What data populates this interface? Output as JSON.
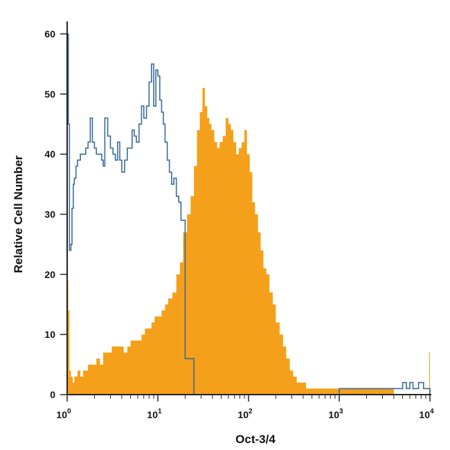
{
  "chart_data": {
    "type": "area",
    "xlabel": "Oct-3/4",
    "ylabel": "Relative Cell Number",
    "x_scale": "log",
    "xlim": [
      1,
      10000
    ],
    "ylim": [
      0,
      60
    ],
    "x_ticks": [
      {
        "value": 1,
        "base": "10",
        "exp": "0"
      },
      {
        "value": 10,
        "base": "10",
        "exp": "1"
      },
      {
        "value": 100,
        "base": "10",
        "exp": "2"
      },
      {
        "value": 1000,
        "base": "10",
        "exp": "3"
      },
      {
        "value": 10000,
        "base": "10",
        "exp": "4"
      }
    ],
    "y_ticks": [
      0,
      10,
      20,
      30,
      40,
      50,
      60
    ],
    "grid": false,
    "legend": "none",
    "colors": {
      "isotype": "#3a6a9a",
      "stained": "#f5a01a",
      "axis": "#222222"
    },
    "series": [
      {
        "role": "isotype-outline",
        "style": "step-outline",
        "x": [
          1.0,
          1.03,
          1.06,
          1.1,
          1.13,
          1.17,
          1.2,
          1.25,
          1.3,
          1.4,
          1.5,
          1.6,
          1.7,
          1.8,
          1.9,
          2.0,
          2.1,
          2.2,
          2.3,
          2.4,
          2.5,
          2.6,
          2.8,
          3.0,
          3.2,
          3.4,
          3.6,
          3.8,
          4.0,
          4.3,
          4.6,
          4.9,
          5.2,
          5.5,
          5.8,
          6.2,
          6.6,
          7.0,
          7.5,
          8.0,
          8.5,
          9.0,
          9.5,
          10.0,
          10.5,
          11.0,
          11.5,
          12.0,
          12.7,
          13.4,
          14.2,
          15.0,
          16.0,
          17.0,
          18.0,
          20.0,
          25.0,
          40.0,
          60.0,
          100.0,
          200.0,
          400.0,
          700.0,
          1000.0,
          1500.0,
          2500.0,
          3500.0,
          5000.0,
          5500.0,
          6000.0,
          6500.0,
          7000.0,
          7500.0,
          8000.0,
          8500.0,
          9000.0,
          9500.0,
          10000.0
        ],
        "values": [
          60,
          45,
          24,
          25,
          31,
          35,
          36,
          38,
          39,
          40,
          40,
          41,
          42,
          46,
          42,
          41,
          40,
          40,
          40,
          39,
          38,
          46,
          43,
          41,
          40,
          39,
          42,
          39,
          37,
          39,
          41,
          41,
          44,
          43,
          42,
          45,
          48,
          46,
          48,
          52,
          55,
          48,
          54,
          53,
          49,
          47,
          45,
          42,
          39,
          37,
          35,
          36,
          33,
          32,
          29,
          6,
          0,
          0,
          0,
          0,
          0,
          0,
          0,
          1,
          1,
          1,
          1,
          2,
          1,
          2,
          1,
          1,
          2,
          2,
          1,
          1,
          1,
          0
        ]
      },
      {
        "role": "stained-filled",
        "style": "step-filled",
        "x": [
          1.0,
          1.03,
          1.06,
          1.1,
          1.15,
          1.2,
          1.3,
          1.4,
          1.5,
          1.7,
          1.9,
          2.1,
          2.3,
          2.5,
          2.8,
          3.1,
          3.4,
          3.8,
          4.2,
          4.6,
          5.0,
          5.5,
          6.0,
          6.6,
          7.2,
          7.8,
          8.5,
          9.2,
          10.0,
          11.0,
          12.0,
          13.0,
          14.5,
          16.0,
          17.5,
          19.0,
          21.0,
          23.0,
          25.0,
          27.0,
          29.0,
          31.0,
          33.0,
          35.0,
          37.0,
          39.0,
          42.0,
          45.0,
          48.0,
          52.0,
          56.0,
          60.0,
          64.0,
          68.0,
          73.0,
          78.0,
          84.0,
          90.0,
          96.0,
          103.0,
          110.0,
          118.0,
          127.0,
          136.0,
          146.0,
          157.0,
          170.0,
          185.0,
          200.0,
          220.0,
          240.0,
          260.0,
          285.0,
          310.0,
          340.0,
          380.0,
          430.0,
          500.0,
          600.0,
          700.0,
          800.0,
          900.0,
          1000.0,
          1200.0,
          1500.0,
          2000.0,
          2500.0,
          3000.0,
          3500.0,
          4000.0,
          5000.0,
          6000.0,
          7000.0,
          8000.0,
          9000.0,
          9800.0,
          10000.0
        ],
        "values": [
          19,
          14,
          4,
          3,
          2,
          3,
          4,
          3,
          4,
          5,
          5,
          6,
          5,
          7,
          7,
          8,
          8,
          8,
          7,
          8,
          9,
          9,
          9,
          10,
          11,
          11,
          12,
          13,
          13,
          14,
          15,
          16,
          17,
          20,
          22,
          27,
          30,
          33,
          38,
          44,
          47,
          51,
          48,
          46,
          45,
          44,
          42,
          41,
          42,
          43,
          46,
          45,
          44,
          42,
          40,
          41,
          42,
          44,
          40,
          37,
          32,
          30,
          27,
          24,
          21,
          20,
          17,
          15,
          12,
          10,
          8,
          6,
          4,
          3,
          2,
          2,
          1,
          1,
          1,
          1,
          1,
          1,
          1,
          1,
          1,
          1,
          1,
          1,
          1,
          0,
          0,
          0,
          0,
          0,
          0,
          7,
          0
        ]
      }
    ]
  }
}
